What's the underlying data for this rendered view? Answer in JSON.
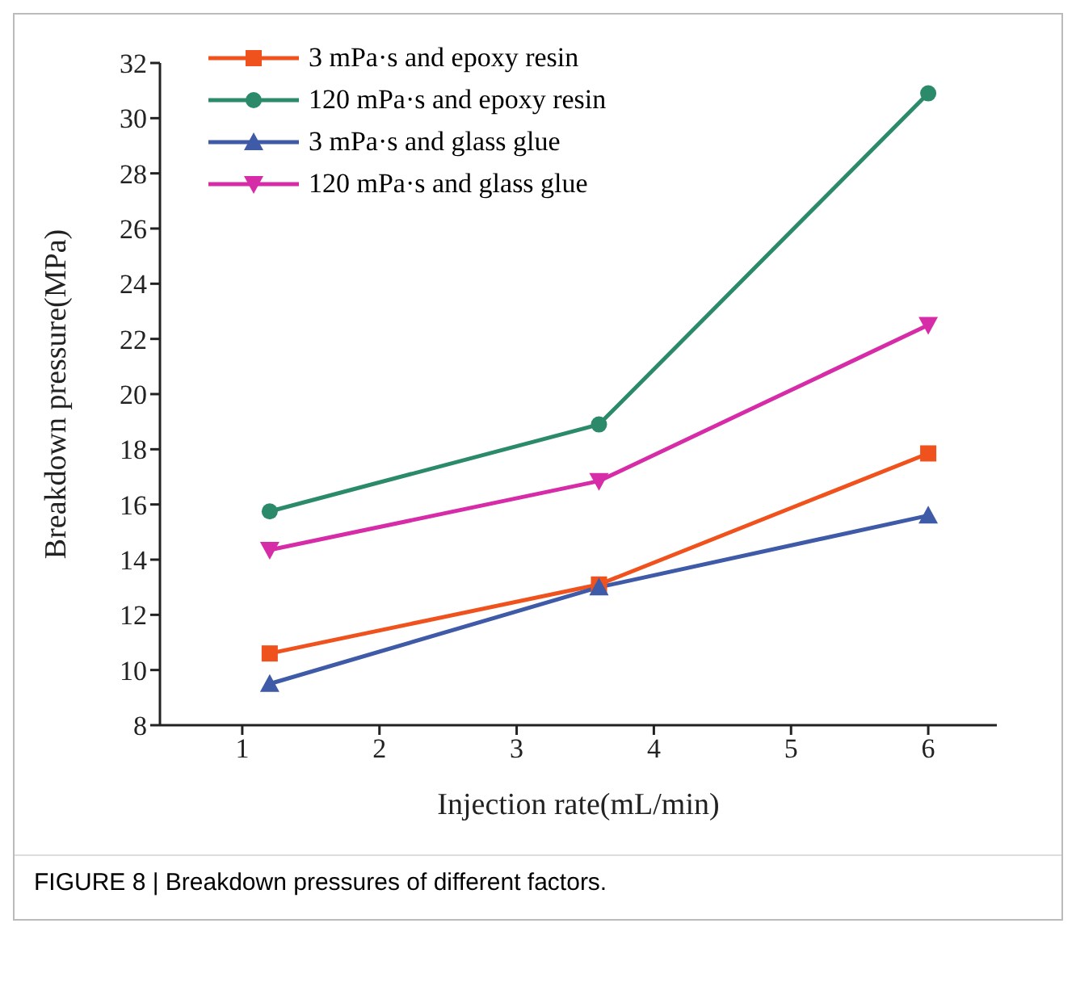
{
  "chart_data": {
    "type": "line",
    "xlabel": "Injection rate(mL/min)",
    "ylabel": "Breakdown pressure(MPa)",
    "x": [
      1.2,
      3.6,
      6
    ],
    "series": [
      {
        "name": "3 mPa·s and epoxy resin",
        "color": "#f0521e",
        "marker": "square",
        "values": [
          10.6,
          13.1,
          17.85
        ]
      },
      {
        "name": "120 mPa·s and epoxy resin",
        "color": "#2a8a6a",
        "marker": "circle",
        "values": [
          15.75,
          18.9,
          30.9
        ]
      },
      {
        "name": "3 mPa·s and glass glue",
        "color": "#3f5ba8",
        "marker": "triangle",
        "values": [
          9.5,
          13.0,
          15.6
        ]
      },
      {
        "name": "120 mPa·s and glass glue",
        "color": "#d62ca8",
        "marker": "triangle-down",
        "values": [
          14.35,
          16.85,
          22.5
        ]
      }
    ],
    "xlim": [
      0.4,
      6.5
    ],
    "xticks": [
      1,
      2,
      3,
      4,
      5,
      6
    ],
    "ylim": [
      8,
      32
    ],
    "yticks": [
      8,
      10,
      12,
      14,
      16,
      18,
      20,
      22,
      24,
      26,
      28,
      30,
      32
    ],
    "legend": "top left",
    "grid": false,
    "line_style": "solid",
    "annotations": [
      "FIGURE 8 | Breakdown pressures of different factors."
    ]
  }
}
